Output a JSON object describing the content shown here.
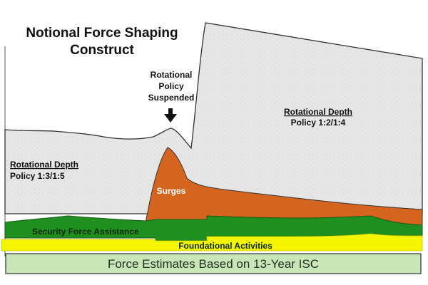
{
  "title": {
    "line1": "Notional Force Shaping",
    "line2": "Construct"
  },
  "annotation": {
    "line1": "Rotational",
    "line2": "Policy",
    "line3": "Suspended"
  },
  "left_region": {
    "heading": "Rotational Depth",
    "policy": "Policy 1:3/1:5"
  },
  "right_region": {
    "heading": "Rotational Depth",
    "policy": "Policy 1:2/1:4"
  },
  "layers": {
    "surges": "Surges",
    "security_force_assistance": "Security Force Assistance",
    "foundational_activities": "Foundational Activities"
  },
  "base_bar": "Force Estimates Based on 13-Year ISC",
  "colors": {
    "depth_fill": "#e6e6e6",
    "surges": "#d4641e",
    "security_force_assistance": "#1f8f1f",
    "foundational_activities": "#f5f500",
    "base_bar": "#c8e6b8",
    "outline": "#222222"
  }
}
